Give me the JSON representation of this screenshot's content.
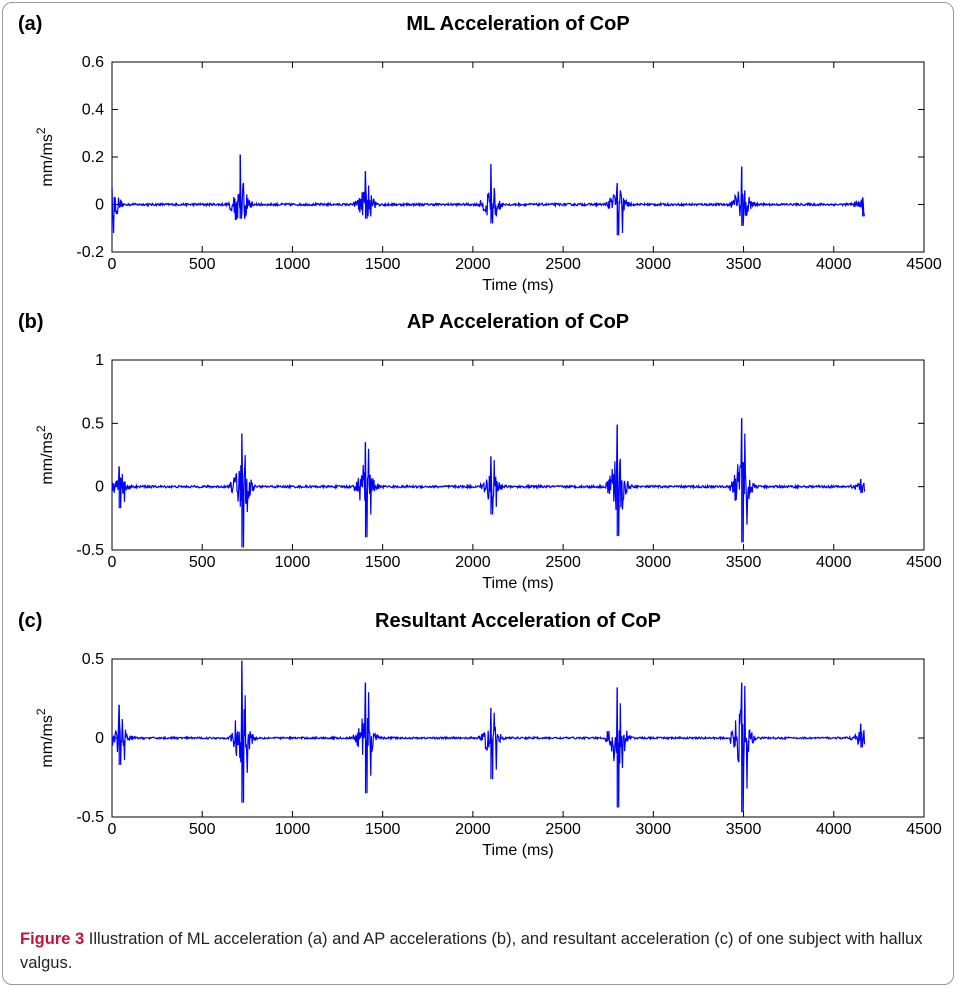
{
  "chart_data": [
    {
      "type": "line",
      "panel_label": "(a)",
      "title": "ML Acceleration of CoP",
      "xlabel": "Time (ms)",
      "ylabel_base": "mm/ms",
      "ylabel_sup": "2",
      "xlim": [
        0,
        4500
      ],
      "ylim": [
        -0.2,
        0.6
      ],
      "xticks": [
        "0",
        "500",
        "1000",
        "1500",
        "2000",
        "2500",
        "3000",
        "3500",
        "4000",
        "4500"
      ],
      "yticks": [
        "-0.2",
        "0",
        "0.2",
        "0.4",
        "0.6"
      ],
      "grid": false,
      "series_color": "#0000ff",
      "signal_length_ms": 4170,
      "bursts": [
        {
          "t": 0,
          "values": [
            0.07,
            -0.12,
            0.03,
            -0.04
          ]
        },
        {
          "t": 710,
          "values": [
            0.21,
            -0.06,
            0.09,
            -0.05
          ]
        },
        {
          "t": 1405,
          "values": [
            0.14,
            -0.06,
            0.08,
            -0.05
          ]
        },
        {
          "t": 2100,
          "values": [
            0.17,
            -0.08,
            0.07,
            -0.05
          ]
        },
        {
          "t": 2800,
          "values": [
            0.09,
            -0.13,
            0.06,
            -0.12
          ]
        },
        {
          "t": 3490,
          "values": [
            0.16,
            -0.09,
            0.06,
            -0.04
          ]
        },
        {
          "t": 4160,
          "values": [
            0.03,
            -0.05,
            0.02,
            -0.04
          ]
        }
      ]
    },
    {
      "type": "line",
      "panel_label": "(b)",
      "title": "AP Acceleration of CoP",
      "xlabel": "Time (ms)",
      "ylabel_base": "mm/ms",
      "ylabel_sup": "2",
      "xlim": [
        0,
        4500
      ],
      "ylim": [
        -0.5,
        1
      ],
      "xticks": [
        "0",
        "500",
        "1000",
        "1500",
        "2000",
        "2500",
        "3000",
        "3500",
        "4000",
        "4500"
      ],
      "yticks": [
        "-0.5",
        "0",
        "0.5",
        "1"
      ],
      "grid": false,
      "series_color": "#0000ff",
      "signal_length_ms": 4170,
      "bursts": [
        {
          "t": 40,
          "values": [
            0.16,
            -0.17,
            0.1,
            -0.12
          ]
        },
        {
          "t": 720,
          "values": [
            0.42,
            -0.48,
            0.25,
            -0.2
          ]
        },
        {
          "t": 1405,
          "values": [
            0.35,
            -0.4,
            0.3,
            -0.22
          ]
        },
        {
          "t": 2100,
          "values": [
            0.24,
            -0.22,
            0.21,
            -0.16
          ]
        },
        {
          "t": 2800,
          "values": [
            0.49,
            -0.39,
            0.22,
            -0.18
          ]
        },
        {
          "t": 3490,
          "values": [
            0.54,
            -0.44,
            0.42,
            -0.3
          ]
        },
        {
          "t": 4150,
          "values": [
            0.06,
            -0.05,
            0.03,
            -0.04
          ]
        }
      ]
    },
    {
      "type": "line",
      "panel_label": "(c)",
      "title": "Resultant Acceleration of CoP",
      "xlabel": "Time (ms)",
      "ylabel_base": "mm/ms",
      "ylabel_sup": "2",
      "xlim": [
        0,
        4500
      ],
      "ylim": [
        -0.5,
        0.5
      ],
      "xticks": [
        "0",
        "500",
        "1000",
        "1500",
        "2000",
        "2500",
        "3000",
        "3500",
        "4000",
        "4500"
      ],
      "yticks": [
        "-0.5",
        "0",
        "0.5"
      ],
      "grid": false,
      "series_color": "#0000ff",
      "signal_length_ms": 4170,
      "bursts": [
        {
          "t": 40,
          "values": [
            0.21,
            -0.17,
            0.12,
            -0.14
          ]
        },
        {
          "t": 720,
          "values": [
            0.49,
            -0.41,
            0.27,
            -0.22
          ]
        },
        {
          "t": 1405,
          "values": [
            0.35,
            -0.35,
            0.29,
            -0.24
          ]
        },
        {
          "t": 2100,
          "values": [
            0.19,
            -0.26,
            0.16,
            -0.2
          ]
        },
        {
          "t": 2800,
          "values": [
            0.32,
            -0.44,
            0.22,
            -0.19
          ]
        },
        {
          "t": 3490,
          "values": [
            0.35,
            -0.47,
            0.33,
            -0.32
          ]
        },
        {
          "t": 4150,
          "values": [
            0.09,
            -0.06,
            0.05,
            -0.04
          ]
        }
      ]
    }
  ],
  "caption": {
    "label": "Figure 3",
    "text": " Illustration of ML acceleration (a) and AP accelerations (b), and resultant acceleration (c) of one subject with hallux valgus."
  }
}
